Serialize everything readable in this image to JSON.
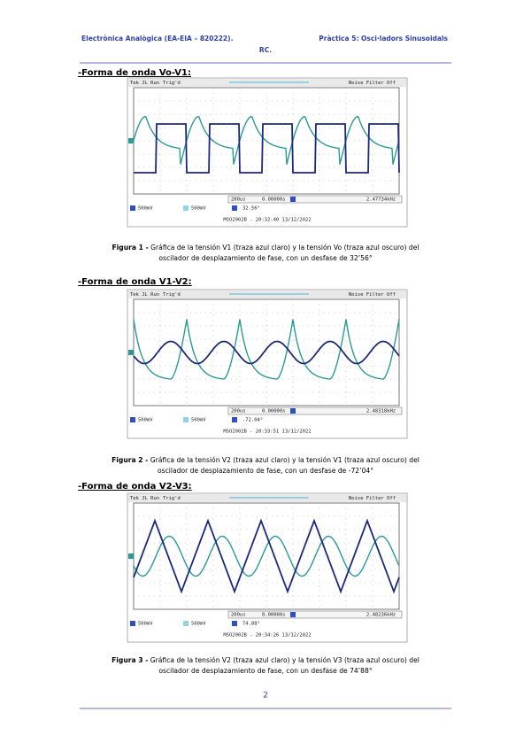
{
  "header": {
    "left": "Electrònica Analògica (EA-EIA – 820222).",
    "right": "Pràctica 5: Osci·ladors Sinusoidals",
    "right2": "RC."
  },
  "figures": [
    {
      "heading": "-Forma de onda Vo-V1:",
      "scope": {
        "status": "Tek JL Run",
        "trigger": "Trig'd",
        "filter": "Noise Filter Off",
        "timebase": "200us",
        "position": "0.00000s",
        "frequency": "2.47734kHz",
        "ch1": "500mV",
        "ch2": "500mV",
        "phase": "32.56°",
        "footer": "MSO2002B - 20:32:40 13/12/2022"
      },
      "caption": {
        "label": "Figura 1 -",
        "line1": "Gráfica de la tensión V1 (traza azul claro) y la tensión Vo (traza azul oscuro) del",
        "line2": "oscilador de desplazamiento de fase, con un desfase de 32’56°"
      }
    },
    {
      "heading": "-Forma de onda V1-V2:",
      "scope": {
        "status": "Tek JL Run",
        "trigger": "Trig'd",
        "filter": "Noise Filter Off",
        "timebase": "200us",
        "position": "0.00000s",
        "frequency": "2.48318kHz",
        "ch1": "500mV",
        "ch2": "500mV",
        "phase": "-72.04°",
        "footer": "MSO2002B - 20:33:51 13/12/2022"
      },
      "caption": {
        "label": "Figura 2 -",
        "line1": "Gráfica de la tensión V2 (traza azul claro) y la tensión V1 (traza azul oscuro) del",
        "line2": "oscilador de desplazamiento de fase, con un desfase de -72’04°"
      }
    },
    {
      "heading": "-Forma de onda V2-V3:",
      "scope": {
        "status": "Tek JL Run",
        "trigger": "Trig'd",
        "filter": "Noise Filter Off",
        "timebase": "200us",
        "position": "0.00000s",
        "frequency": "2.48236kHz",
        "ch1": "500mV",
        "ch2": "500mV",
        "phase": "74.88°",
        "footer": "MSO2002B - 20:34:26 13/12/2022"
      },
      "caption": {
        "label": "Figura 3 -",
        "line1": "Gráfica de la tensión V2 (traza azul claro) y la tensión V3 (traza azul oscuro) del",
        "line2": "oscilador de desplazamiento de fase, con un desfase de 74’88°"
      }
    }
  ],
  "page_number": "2"
}
